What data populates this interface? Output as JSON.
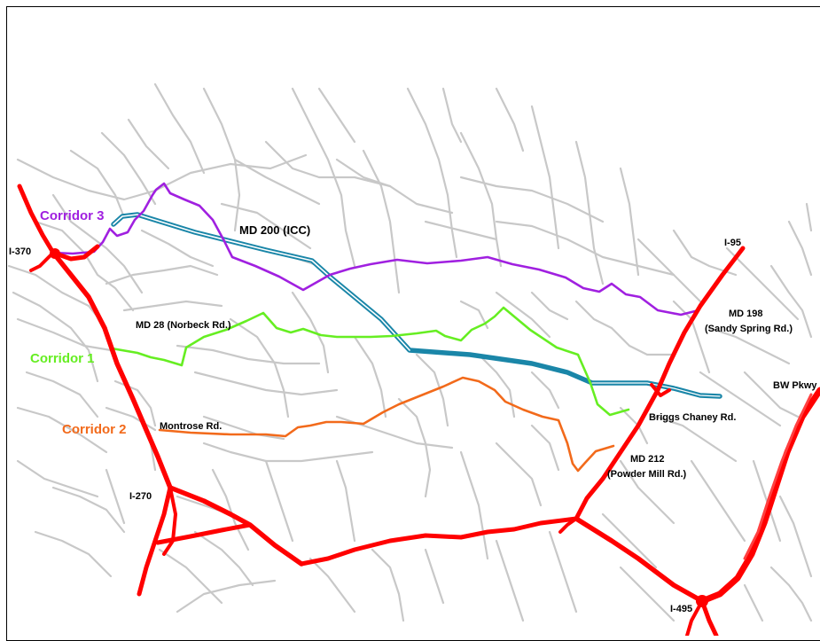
{
  "colors": {
    "local_roads": "#c8c8c8",
    "interstate": "#ff0000",
    "corridor_1": "#66ee22",
    "corridor_2": "#f26a1b",
    "corridor_3": "#a020e0",
    "icc": "#1a86a8"
  },
  "labels": {
    "corridor_1": "Corridor 1",
    "corridor_2": "Corridor 2",
    "corridor_3": "Corridor 3",
    "icc": "MD 200 (ICC)",
    "md28": "MD 28 (Norbeck Rd.)",
    "montrose": "Montrose Rd.",
    "md198_line1": "MD 198",
    "md198_line2": "(Sandy Spring Rd.)",
    "briggs": "Briggs Chaney Rd.",
    "md212_line1": "MD 212",
    "md212_line2": "(Powder Mill Rd.)",
    "i370": "I-370",
    "i95": "I-95",
    "i270": "I-270",
    "i495": "I-495",
    "bw": "BW Pkwy"
  }
}
